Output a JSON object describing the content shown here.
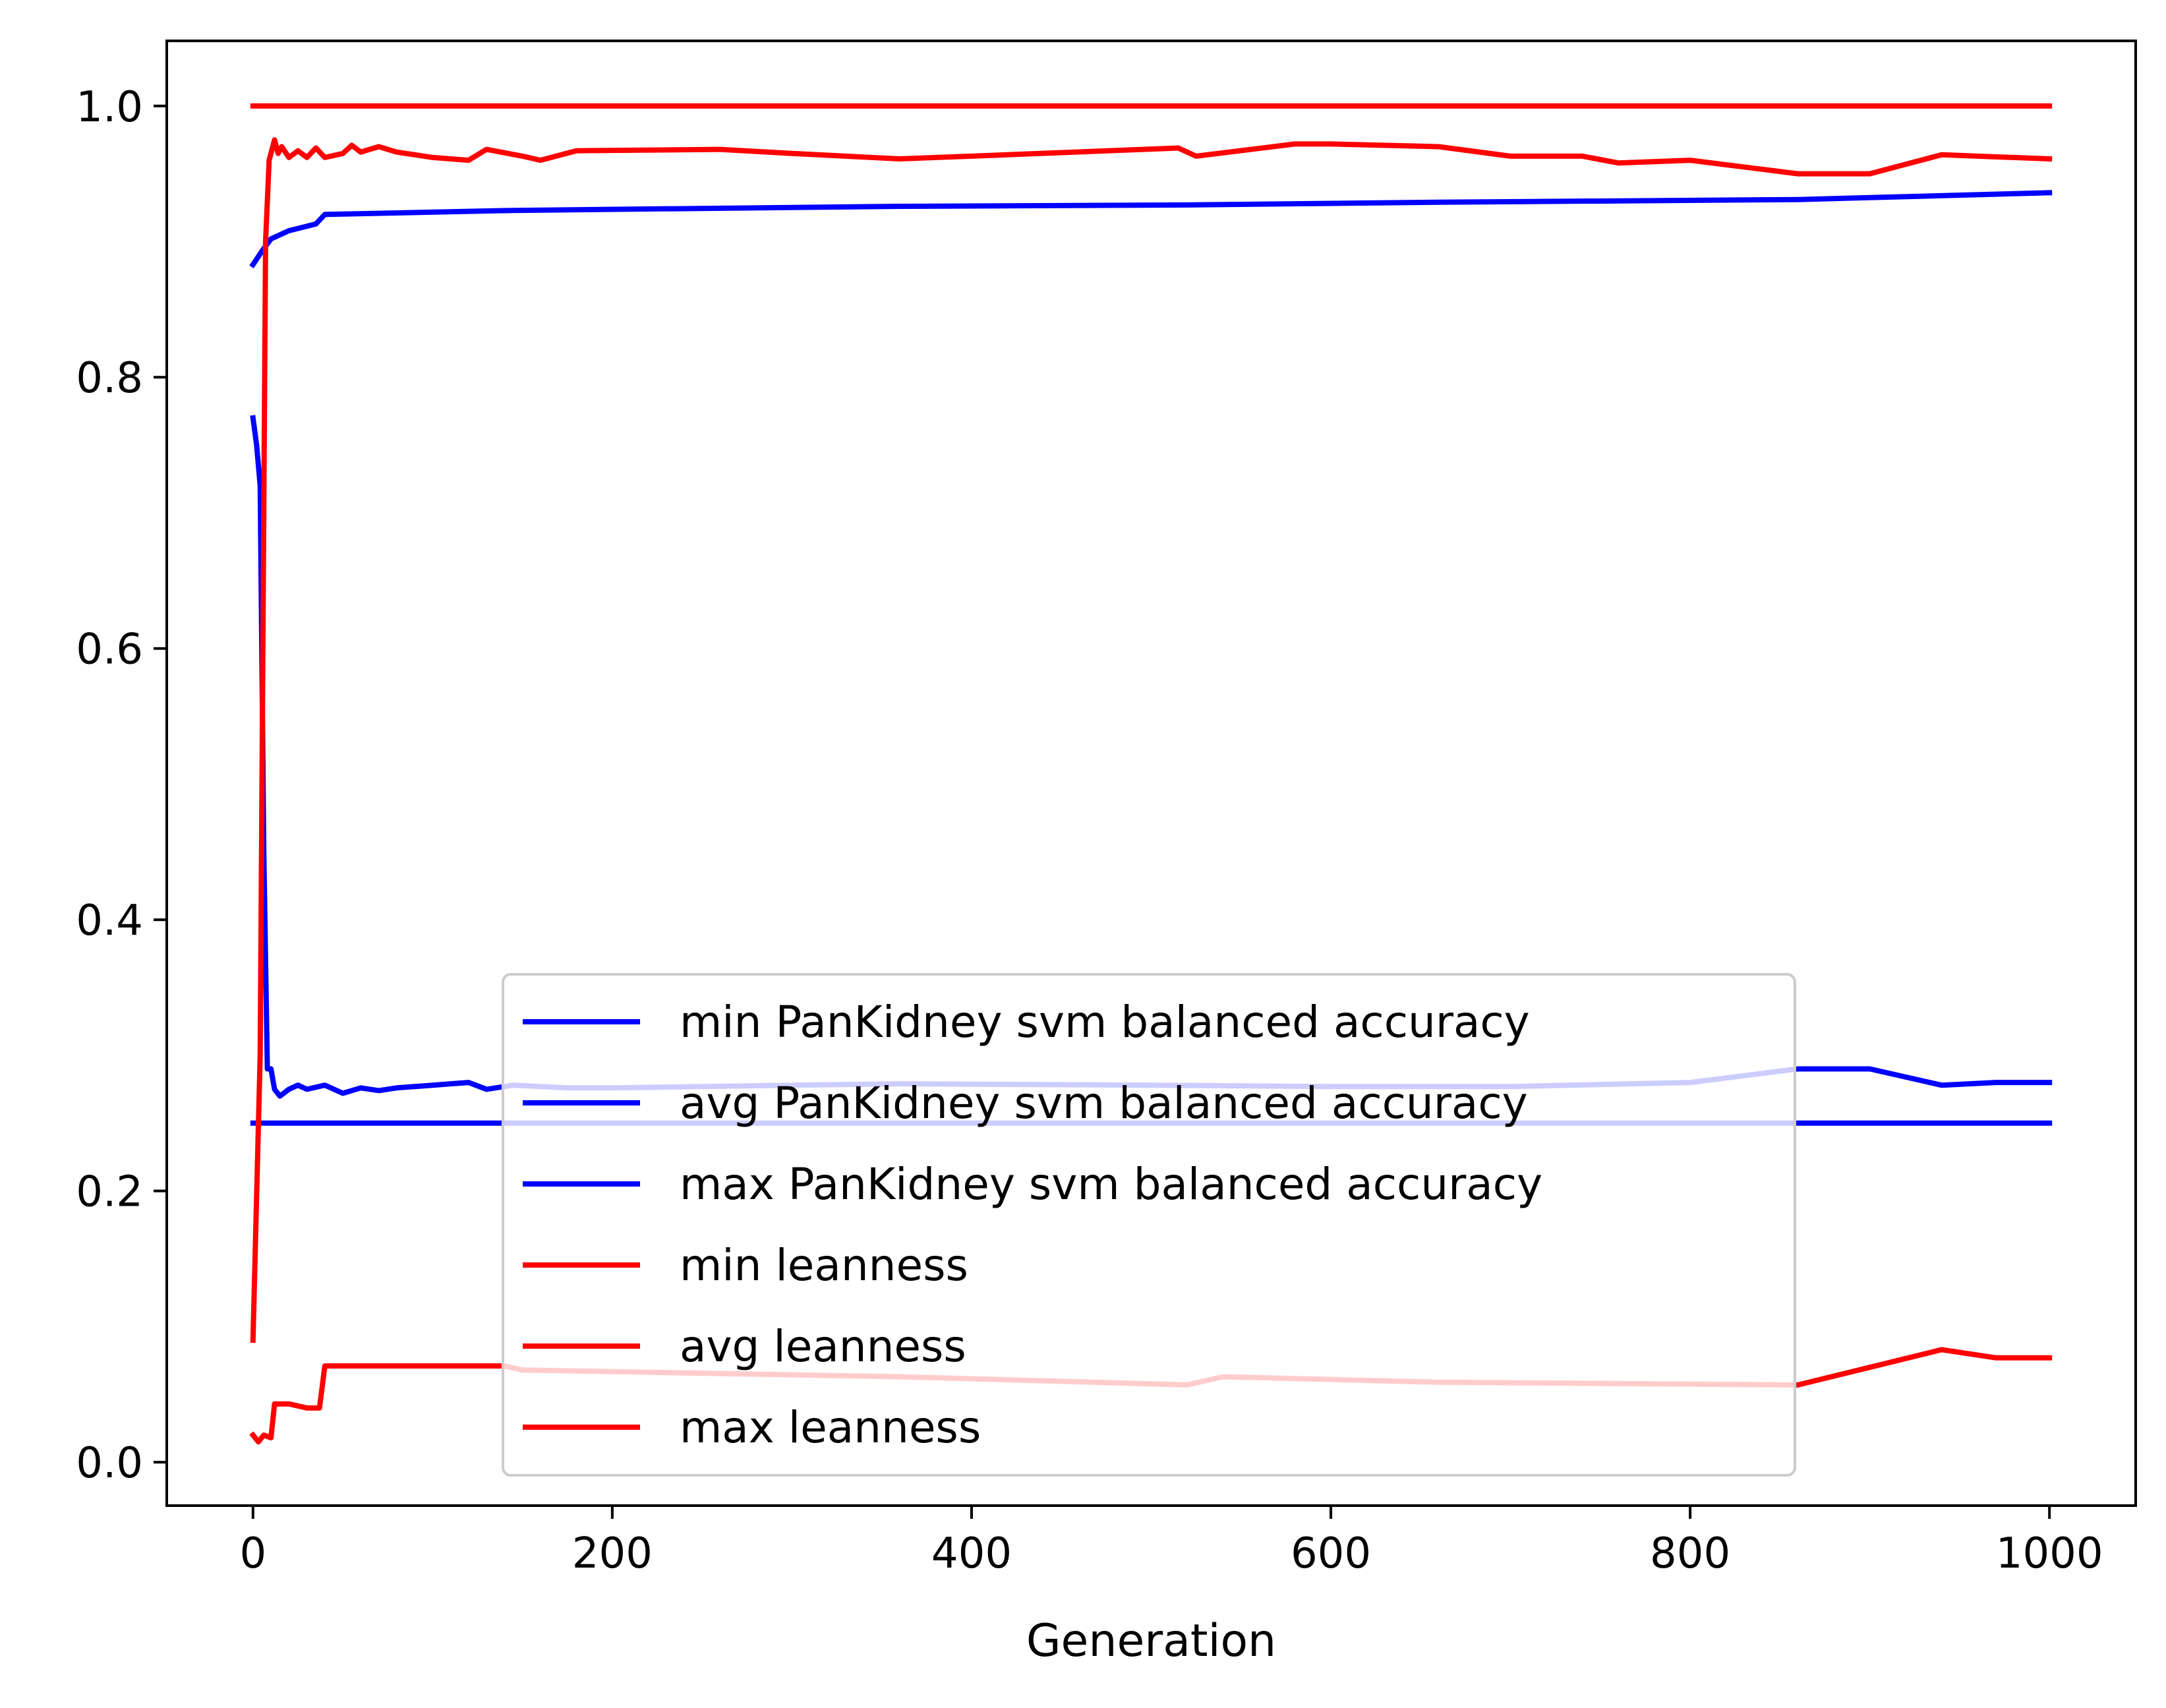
{
  "chart_data": {
    "type": "line",
    "title": "",
    "xlabel": "Generation",
    "ylabel": "",
    "xlim": [
      -48,
      1048
    ],
    "ylim": [
      -0.032,
      1.048
    ],
    "xticks": [
      0,
      200,
      400,
      600,
      800,
      1000
    ],
    "xtick_labels": [
      "0",
      "200",
      "400",
      "600",
      "800",
      "1000"
    ],
    "yticks": [
      0.0,
      0.2,
      0.4,
      0.6,
      0.8,
      1.0
    ],
    "ytick_labels": [
      "0.0",
      "0.2",
      "0.4",
      "0.6",
      "0.8",
      "1.0"
    ],
    "grid": false,
    "legend_position": "lower center",
    "series": [
      {
        "name": "min PanKidney svm balanced accuracy",
        "color": "#0000ff",
        "x": [
          0,
          1000
        ],
        "y": [
          0.25,
          0.25
        ]
      },
      {
        "name": "avg PanKidney svm balanced accuracy",
        "color": "#0000ff",
        "x": [
          0,
          2,
          4,
          6,
          8,
          10,
          12,
          15,
          20,
          25,
          30,
          40,
          50,
          60,
          70,
          80,
          90,
          100,
          110,
          120,
          130,
          145,
          175,
          200,
          300,
          360,
          500,
          600,
          700,
          800,
          860,
          900,
          940,
          970,
          1000
        ],
        "y": [
          0.77,
          0.75,
          0.72,
          0.45,
          0.29,
          0.29,
          0.275,
          0.27,
          0.275,
          0.278,
          0.275,
          0.278,
          0.272,
          0.276,
          0.274,
          0.276,
          0.277,
          0.278,
          0.279,
          0.28,
          0.275,
          0.278,
          0.276,
          0.276,
          0.278,
          0.279,
          0.278,
          0.277,
          0.277,
          0.28,
          0.29,
          0.29,
          0.278,
          0.28,
          0.28
        ]
      },
      {
        "name": "max PanKidney svm balanced accuracy",
        "color": "#0000ff",
        "x": [
          0,
          5,
          10,
          20,
          35,
          40,
          145,
          360,
          520,
          660,
          860,
          1000
        ],
        "y": [
          0.883,
          0.893,
          0.902,
          0.908,
          0.913,
          0.92,
          0.923,
          0.926,
          0.927,
          0.929,
          0.931,
          0.936
        ]
      },
      {
        "name": "min leanness",
        "color": "#ff0000",
        "x": [
          0,
          3,
          6,
          10,
          12,
          20,
          30,
          37,
          40,
          140,
          150,
          360,
          520,
          540,
          660,
          860,
          940,
          970,
          1000
        ],
        "y": [
          0.02,
          0.015,
          0.02,
          0.018,
          0.043,
          0.043,
          0.04,
          0.04,
          0.071,
          0.071,
          0.068,
          0.063,
          0.057,
          0.063,
          0.059,
          0.057,
          0.083,
          0.077,
          0.077
        ]
      },
      {
        "name": "avg leanness",
        "color": "#ff0000",
        "x": [
          0,
          4,
          7,
          9,
          12,
          14,
          16,
          20,
          25,
          30,
          35,
          40,
          50,
          55,
          60,
          70,
          80,
          100,
          120,
          130,
          150,
          160,
          180,
          260,
          300,
          360,
          400,
          515,
          525,
          580,
          600,
          660,
          700,
          740,
          760,
          800,
          860,
          900,
          940,
          1000
        ],
        "y": [
          0.09,
          0.3,
          0.9,
          0.96,
          0.975,
          0.965,
          0.97,
          0.962,
          0.967,
          0.962,
          0.969,
          0.962,
          0.965,
          0.971,
          0.966,
          0.97,
          0.966,
          0.962,
          0.96,
          0.968,
          0.963,
          0.96,
          0.967,
          0.968,
          0.965,
          0.961,
          0.963,
          0.969,
          0.963,
          0.972,
          0.972,
          0.97,
          0.963,
          0.963,
          0.958,
          0.96,
          0.95,
          0.95,
          0.964,
          0.961
        ]
      },
      {
        "name": "max leanness",
        "color": "#ff0000",
        "x": [
          0,
          1000
        ],
        "y": [
          1.0,
          1.0
        ]
      }
    ]
  }
}
